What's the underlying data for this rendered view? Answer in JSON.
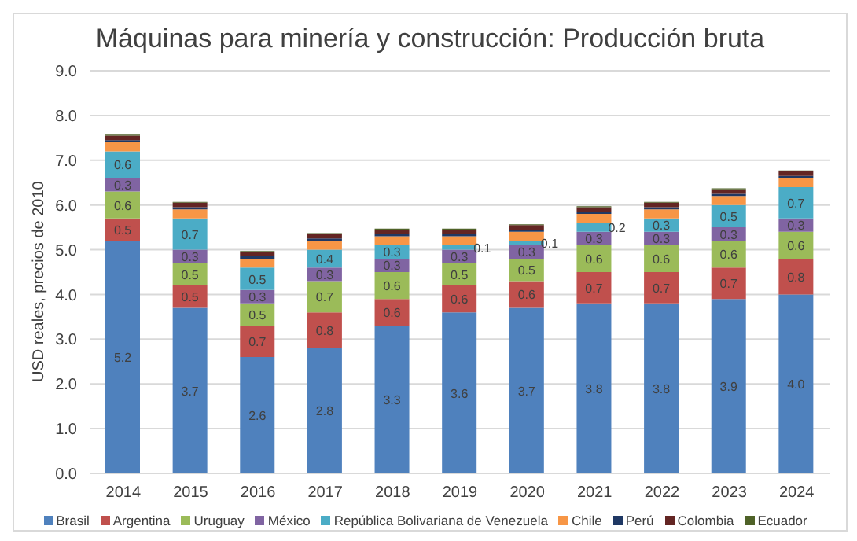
{
  "chart_data": {
    "type": "bar",
    "title": "Máquinas para minería y construcción: Producción bruta",
    "ylabel": "USD reales, precios de 2010",
    "stacked": true,
    "categories": [
      "2014",
      "2015",
      "2016",
      "2017",
      "2018",
      "2019",
      "2020",
      "2021",
      "2022",
      "2023",
      "2024"
    ],
    "series": [
      {
        "name": "Brasil",
        "color": "#4f81bd",
        "values": [
          5.2,
          3.7,
          2.6,
          2.8,
          3.3,
          3.6,
          3.7,
          3.8,
          3.8,
          3.9,
          4.0
        ],
        "value_labels": [
          "5.2",
          "3.7",
          "2.6",
          "2.8",
          "3.3",
          "3.6",
          "3.7",
          "3.8",
          "3.8",
          "3.9",
          "4.0"
        ]
      },
      {
        "name": "Argentina",
        "color": "#c0504d",
        "values": [
          0.5,
          0.5,
          0.7,
          0.8,
          0.6,
          0.6,
          0.6,
          0.7,
          0.7,
          0.7,
          0.8
        ],
        "value_labels": [
          "0.5",
          "0.5",
          "0.7",
          "0.8",
          "0.6",
          "0.6",
          "0.6",
          "0.7",
          "0.7",
          "0.7",
          "0.8"
        ]
      },
      {
        "name": "Uruguay",
        "color": "#9bbb59",
        "values": [
          0.6,
          0.5,
          0.5,
          0.7,
          0.6,
          0.5,
          0.5,
          0.6,
          0.6,
          0.6,
          0.6
        ],
        "value_labels": [
          "0.6",
          "0.5",
          "0.5",
          "0.7",
          "0.6",
          "0.5",
          "0.5",
          "0.6",
          "0.6",
          "0.6",
          "0.6"
        ]
      },
      {
        "name": "México",
        "color": "#8064a2",
        "values": [
          0.3,
          0.3,
          0.3,
          0.3,
          0.3,
          0.3,
          0.3,
          0.3,
          0.3,
          0.3,
          0.3
        ],
        "value_labels": [
          "0.3",
          "0.3",
          "0.3",
          "0.3",
          "0.3",
          "0.3",
          "0.3",
          "0.3",
          "0.3",
          "0.3",
          "0.3"
        ]
      },
      {
        "name": "República Bolivariana de Venezuela",
        "color": "#4bacc6",
        "values": [
          0.6,
          0.7,
          0.5,
          0.4,
          0.3,
          0.1,
          0.1,
          0.2,
          0.3,
          0.5,
          0.7
        ],
        "value_labels": [
          "0.6",
          "0.7",
          "0.5",
          "0.4",
          "0.3",
          "0.1",
          "0.1",
          "0.2",
          "0.3",
          "0.5",
          "0.7"
        ]
      },
      {
        "name": "Chile",
        "color": "#f79646",
        "values": [
          0.2,
          0.2,
          0.2,
          0.2,
          0.2,
          0.2,
          0.2,
          0.2,
          0.2,
          0.2,
          0.2
        ]
      },
      {
        "name": "Perú",
        "color": "#1f3864",
        "values": [
          0.05,
          0.05,
          0.05,
          0.05,
          0.05,
          0.05,
          0.05,
          0.05,
          0.05,
          0.05,
          0.05
        ]
      },
      {
        "name": "Colombia",
        "color": "#632523",
        "values": [
          0.1,
          0.1,
          0.1,
          0.1,
          0.1,
          0.1,
          0.1,
          0.1,
          0.1,
          0.1,
          0.1
        ]
      },
      {
        "name": "Ecuador",
        "color": "#4f6228",
        "values": [
          0.02,
          0.02,
          0.02,
          0.02,
          0.02,
          0.02,
          0.02,
          0.02,
          0.02,
          0.02,
          0.02
        ]
      }
    ],
    "ylim": [
      0,
      9
    ],
    "yticks": [
      {
        "value": 0,
        "label": "0.0"
      },
      {
        "value": 1,
        "label": "1.0"
      },
      {
        "value": 2,
        "label": "2.0"
      },
      {
        "value": 3,
        "label": "3.0"
      },
      {
        "value": 4,
        "label": "4.0"
      },
      {
        "value": 5,
        "label": "5.0"
      },
      {
        "value": 6,
        "label": "6.0"
      },
      {
        "value": 7,
        "label": "7.0"
      },
      {
        "value": 8,
        "label": "8.0"
      },
      {
        "value": 9,
        "label": "9.0"
      }
    ],
    "grid": "y",
    "legend": "bottom"
  }
}
